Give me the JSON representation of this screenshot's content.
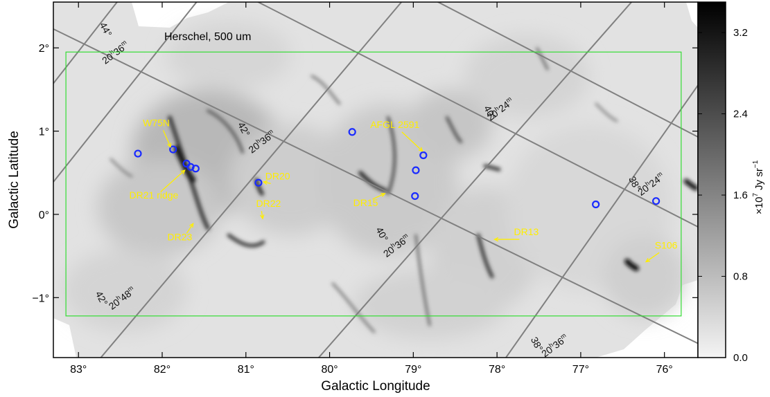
{
  "chart_data": {
    "type": "heatmap",
    "title": "Herschel, 500 um",
    "xlabel": "Galactic Longitude",
    "ylabel": "Galactic Latitude",
    "xlim": [
      83.3,
      75.6
    ],
    "ylim": [
      -1.72,
      2.55
    ],
    "x_ticks": [
      {
        "value": 83,
        "label": "83°"
      },
      {
        "value": 82,
        "label": "82°"
      },
      {
        "value": 81,
        "label": "81°"
      },
      {
        "value": 80,
        "label": "80°"
      },
      {
        "value": 79,
        "label": "79°"
      },
      {
        "value": 78,
        "label": "78°"
      },
      {
        "value": 77,
        "label": "77°"
      },
      {
        "value": 76,
        "label": "76°"
      }
    ],
    "y_ticks": [
      {
        "value": -1,
        "label": "−1°"
      },
      {
        "value": 0,
        "label": "0°"
      },
      {
        "value": 1,
        "label": "1°"
      },
      {
        "value": 2,
        "label": "2°"
      }
    ],
    "colorbar": {
      "label_main": "×10",
      "label_exp": "7",
      "label_unit": " Jy sr",
      "label_unit_exp": "−1",
      "range": [
        0.0,
        3.5
      ],
      "colors": [
        "#f4f4f4",
        "#000000"
      ],
      "ticks": [
        {
          "value": 0.0,
          "label": "0.0"
        },
        {
          "value": 0.8,
          "label": "0.8"
        },
        {
          "value": 1.6,
          "label": "1.6"
        },
        {
          "value": 2.4,
          "label": "2.4"
        },
        {
          "value": 3.2,
          "label": "3.2"
        }
      ]
    },
    "box": {
      "color": "#33dd33",
      "l_min": 75.8,
      "l_max": 83.15,
      "b_min": -1.22,
      "b_max": 1.95
    },
    "sources": [
      {
        "l": 82.29,
        "b": 0.73
      },
      {
        "l": 81.87,
        "b": 0.78
      },
      {
        "l": 81.71,
        "b": 0.61
      },
      {
        "l": 81.66,
        "b": 0.57
      },
      {
        "l": 81.6,
        "b": 0.55
      },
      {
        "l": 80.85,
        "b": 0.38
      },
      {
        "l": 79.73,
        "b": 0.99
      },
      {
        "l": 78.88,
        "b": 0.71
      },
      {
        "l": 78.97,
        "b": 0.53
      },
      {
        "l": 78.98,
        "b": 0.22
      },
      {
        "l": 76.82,
        "b": 0.12
      },
      {
        "l": 76.1,
        "b": 0.16
      }
    ],
    "annotations": [
      {
        "label": "W75N",
        "tl": 82.07,
        "tb": 1.06,
        "al": 81.9,
        "ab": 0.81
      },
      {
        "label": "DR21 ridge",
        "tl": 82.1,
        "tb": 0.19,
        "al": 81.73,
        "ab": 0.53
      },
      {
        "label": "DR23",
        "tl": 81.79,
        "tb": -0.31,
        "al": 81.63,
        "ab": -0.11
      },
      {
        "label": "DR20",
        "tl": 80.62,
        "tb": 0.42,
        "al": 80.79,
        "ab": 0.39
      },
      {
        "label": "DR22",
        "tl": 80.73,
        "tb": 0.09,
        "al": 80.8,
        "ab": -0.05
      },
      {
        "label": "AFGL 2591",
        "tl": 79.22,
        "tb": 1.04,
        "al": 78.89,
        "ab": 0.76
      },
      {
        "label": "DR15",
        "tl": 79.57,
        "tb": 0.1,
        "al": 79.34,
        "ab": 0.25
      },
      {
        "label": "DR13",
        "tl": 77.65,
        "tb": -0.25,
        "al": 78.03,
        "ab": -0.3
      },
      {
        "label": "S106",
        "tl": 75.98,
        "tb": -0.41,
        "al": 76.22,
        "ab": -0.57
      }
    ],
    "grid_labels": [
      {
        "main": "44°",
        "sup": "",
        "sub": "",
        "l": 82.75,
        "b": 2.28,
        "angle": -62
      },
      {
        "main": "20",
        "sup": "h",
        "sub": "36",
        "sup2": "m",
        "l": 82.68,
        "b": 1.8,
        "angle": 37
      },
      {
        "main": "42°",
        "sup": "",
        "sub": "",
        "l": 81.1,
        "b": 1.08,
        "angle": -62
      },
      {
        "main": "20",
        "sup": "h",
        "sub": "36",
        "sup2": "m",
        "l": 80.93,
        "b": 0.73,
        "angle": 37
      },
      {
        "main": "40°",
        "sup": "",
        "sub": "",
        "l": 78.16,
        "b": 1.28,
        "angle": -62
      },
      {
        "main": "20",
        "sup": "h",
        "sub": "24",
        "sup2": "m",
        "l": 78.08,
        "b": 1.12,
        "angle": 37
      },
      {
        "main": "38°",
        "sup": "",
        "sub": "",
        "l": 76.43,
        "b": 0.43,
        "angle": -62
      },
      {
        "main": "20",
        "sup": "h",
        "sub": "24",
        "sup2": "m",
        "l": 76.28,
        "b": 0.22,
        "angle": 37
      },
      {
        "main": "40°",
        "sup": "",
        "sub": "",
        "l": 79.45,
        "b": -0.18,
        "angle": -62
      },
      {
        "main": "20",
        "sup": "h",
        "sub": "36",
        "sup2": "m",
        "l": 79.32,
        "b": -0.52,
        "angle": 37
      },
      {
        "main": "42°",
        "sup": "",
        "sub": "",
        "l": 82.8,
        "b": -0.95,
        "angle": -62
      },
      {
        "main": "20",
        "sup": "h",
        "sub": "48",
        "sup2": "m",
        "l": 82.6,
        "b": -1.15,
        "angle": 37
      },
      {
        "main": "38°",
        "sup": "",
        "sub": "",
        "l": 77.6,
        "b": -1.5,
        "angle": -62
      },
      {
        "main": "20",
        "sup": "h",
        "sub": "36",
        "sup2": "m",
        "l": 77.43,
        "b": -1.72,
        "angle": 37
      }
    ],
    "grid_lines": [
      [
        [
          83.45,
          2.3
        ],
        [
          75.6,
          -1.55
        ]
      ],
      [
        [
          80.95,
          2.6
        ],
        [
          75.6,
          -0.15
        ]
      ],
      [
        [
          78.8,
          2.6
        ],
        [
          75.6,
          0.93
        ]
      ],
      [
        [
          82.5,
          2.6
        ],
        [
          83.45,
          1.38
        ]
      ],
      [
        [
          81.55,
          2.6
        ],
        [
          83.45,
          0.2
        ]
      ],
      [
        [
          79.1,
          2.6
        ],
        [
          82.8,
          -1.8
        ]
      ],
      [
        [
          76.35,
          2.6
        ],
        [
          80.2,
          -1.8
        ]
      ],
      [
        [
          75.6,
          1.55
        ],
        [
          77.95,
          -1.8
        ]
      ]
    ]
  }
}
